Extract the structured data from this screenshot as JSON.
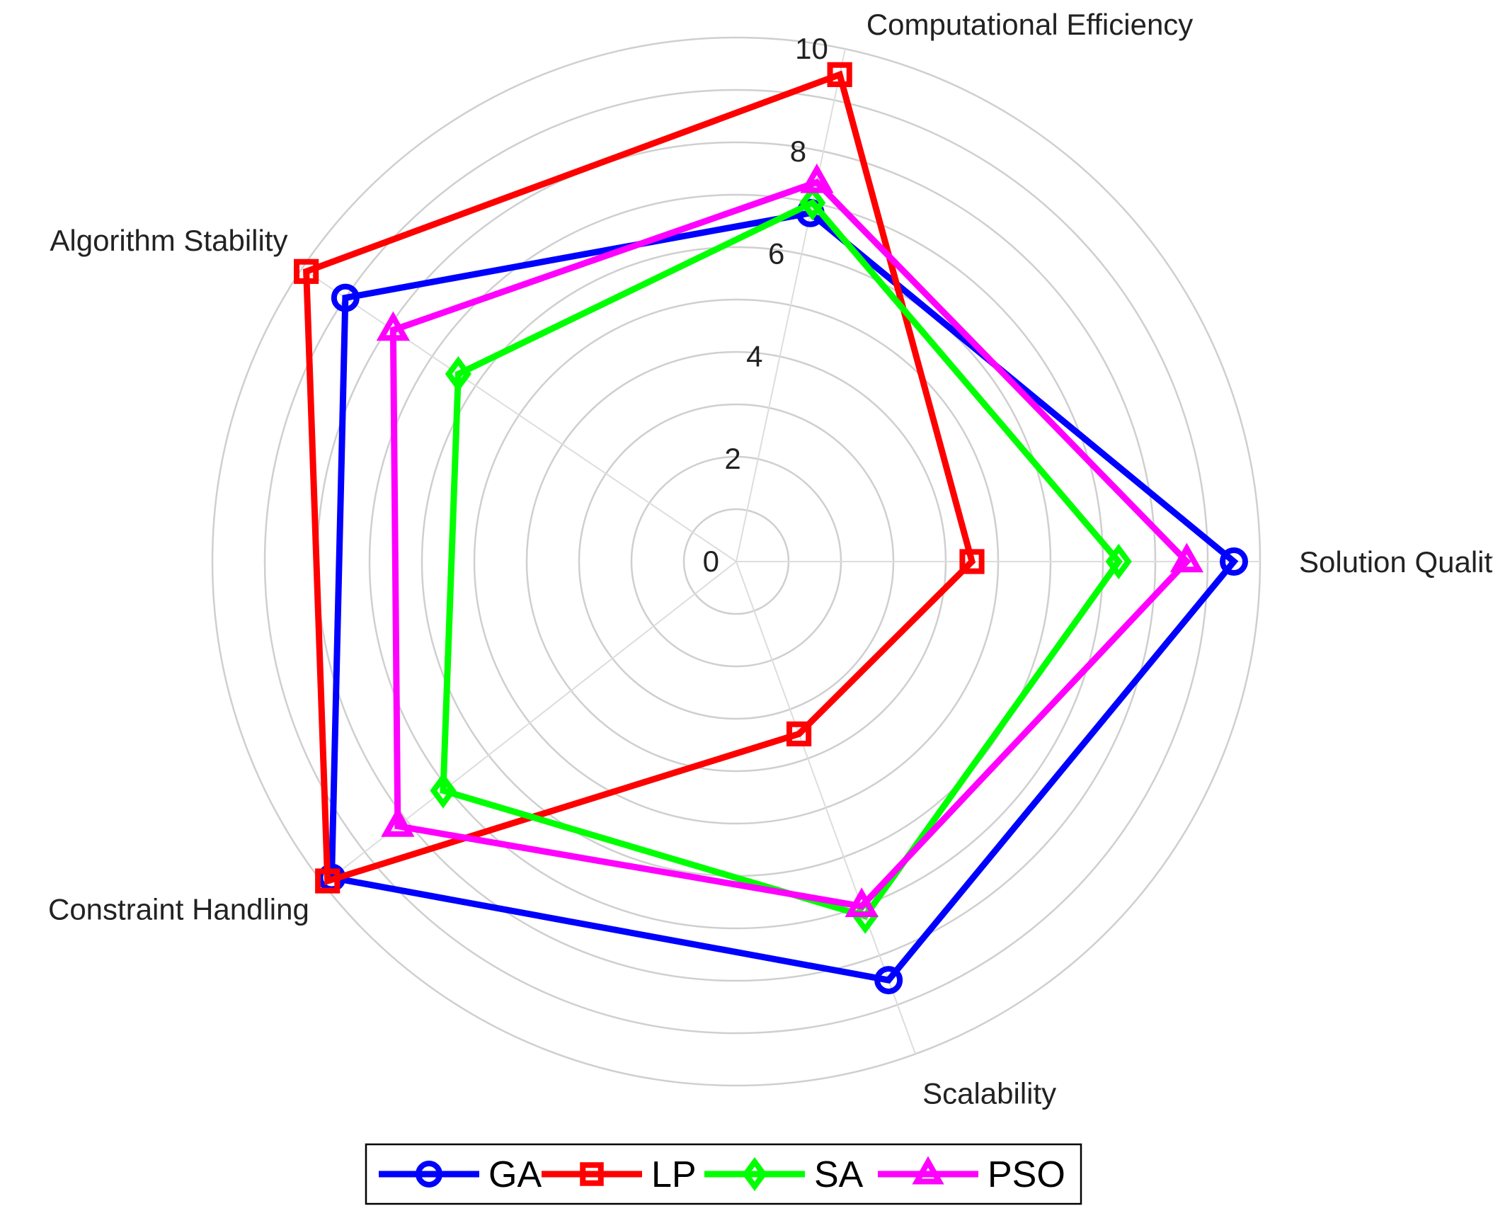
{
  "chart_data": {
    "type": "radar",
    "axes": [
      "Solution Quality",
      "Computational Efficiency",
      "Algorithm Stability",
      "Constraint Handling",
      "Scalability"
    ],
    "rlim": [
      0,
      10
    ],
    "rticks": [
      0,
      2,
      4,
      6,
      8,
      10
    ],
    "grid": true,
    "legend_position": "bottom",
    "series": [
      {
        "name": "GA",
        "color": "#0000ff",
        "marker": "circle",
        "values": [
          9.5,
          6.8,
          9.0,
          9.8,
          8.5
        ]
      },
      {
        "name": "LP",
        "color": "#ff0000",
        "marker": "square",
        "values": [
          4.5,
          9.5,
          9.9,
          9.9,
          3.5
        ]
      },
      {
        "name": "SA",
        "color": "#00ff00",
        "marker": "diamond",
        "values": [
          7.3,
          7.0,
          6.4,
          7.1,
          7.2
        ]
      },
      {
        "name": "PSO",
        "color": "#ff00ff",
        "marker": "triangle",
        "values": [
          8.6,
          7.4,
          7.9,
          8.2,
          7.0
        ]
      }
    ]
  }
}
